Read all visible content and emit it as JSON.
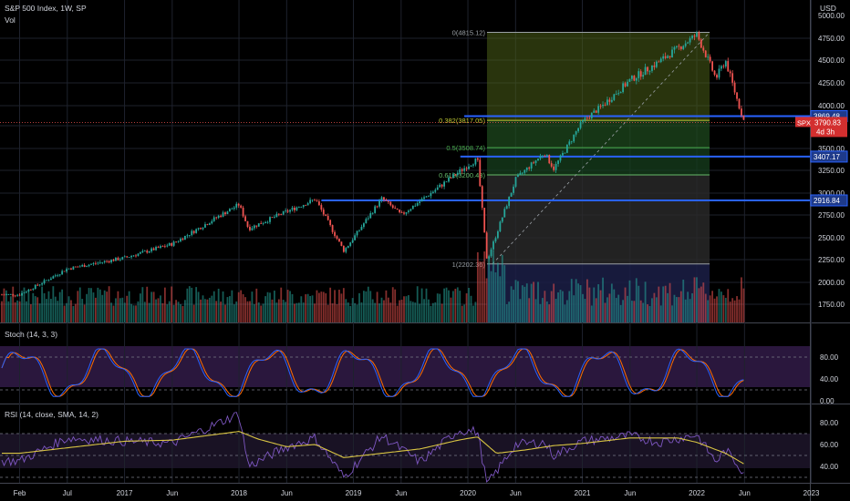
{
  "header": {
    "title": "S&P 500 Index, 1W, SP",
    "vol_label": "Vol",
    "stoch_label": "Stoch (14, 3, 3)",
    "rsi_label": "RSI (14, close, SMA, 14, 2)",
    "currency": "USD"
  },
  "price_badge": {
    "symbol": "SPX",
    "value": "3790.83",
    "countdown": "4d 3h"
  },
  "chart_data": [
    {
      "type": "candlestick",
      "title": "S&P 500 Index, 1W, SP",
      "y_ticks": [
        "5000.00",
        "4750.00",
        "4500.00",
        "4250.00",
        "4000.00",
        "3750.00",
        "3500.00",
        "3250.00",
        "3000.00",
        "2750.00",
        "2500.00",
        "2250.00",
        "2000.00",
        "1750.00"
      ],
      "ylim": [
        1500,
        5100
      ],
      "x_ticks": [
        "Feb",
        "Jul",
        "2017",
        "Jun",
        "2018",
        "Jun",
        "2019",
        "Jun",
        "2020",
        "Jun",
        "2021",
        "Jun",
        "2022",
        "Jun",
        "2023"
      ],
      "key_points": [
        {
          "date": "2016-02",
          "close": 1860
        },
        {
          "date": "2016-07",
          "close": 2150
        },
        {
          "date": "2017-01",
          "close": 2270
        },
        {
          "date": "2017-06",
          "close": 2430
        },
        {
          "date": "2018-01",
          "close": 2870
        },
        {
          "date": "2018-02",
          "close": 2600
        },
        {
          "date": "2018-09",
          "close": 2930
        },
        {
          "date": "2018-12",
          "close": 2350
        },
        {
          "date": "2019-04",
          "close": 2940
        },
        {
          "date": "2019-06",
          "close": 2750
        },
        {
          "date": "2019-12",
          "close": 3230
        },
        {
          "date": "2020-02",
          "close": 3380
        },
        {
          "date": "2020-03",
          "close": 2240
        },
        {
          "date": "2020-06",
          "close": 3150
        },
        {
          "date": "2020-09",
          "close": 3450
        },
        {
          "date": "2020-10",
          "close": 3270
        },
        {
          "date": "2021-01",
          "close": 3800
        },
        {
          "date": "2021-06",
          "close": 4280
        },
        {
          "date": "2021-09",
          "close": 4480
        },
        {
          "date": "2022-01",
          "close": 4790
        },
        {
          "date": "2022-03",
          "close": 4300
        },
        {
          "date": "2022-04",
          "close": 4500
        },
        {
          "date": "2022-06",
          "close": 3790
        }
      ],
      "horizontal_levels": [
        {
          "price": 3869.48,
          "label": "3869.48"
        },
        {
          "price": 3407.17,
          "label": "3407.17"
        },
        {
          "price": 2916.84,
          "label": "2916.84"
        }
      ],
      "fibonacci": [
        {
          "ratio": "0",
          "price": 4815.12,
          "label": "0(4815.12)"
        },
        {
          "ratio": "0.382",
          "price": 3817.05,
          "label": "0.382(3817.05)"
        },
        {
          "ratio": "0.5",
          "price": 3508.74,
          "label": "0.5(3508.74)"
        },
        {
          "ratio": "0.618",
          "price": 3200.43,
          "label": "0.618(3200.43)"
        },
        {
          "ratio": "1",
          "price": 2202.36,
          "label": "1(2202.36)"
        }
      ],
      "last_price": 3790.83
    },
    {
      "type": "line",
      "title": "Stoch (14, 3, 3)",
      "y_ticks": [
        "80.00",
        "40.00",
        "0.00"
      ],
      "ylim": [
        0,
        100
      ],
      "bands": [
        20,
        80
      ]
    },
    {
      "type": "line",
      "title": "RSI (14, close, SMA, 14, 2)",
      "y_ticks": [
        "80.00",
        "60.00",
        "40.00"
      ],
      "ylim": [
        25,
        95
      ],
      "bands": [
        30,
        50,
        70
      ],
      "rsi_points": [
        [
          "2016-02",
          45
        ],
        [
          "2016-07",
          66
        ],
        [
          "2017-01",
          63
        ],
        [
          "2017-06",
          61
        ],
        [
          "2018-01",
          88
        ],
        [
          "2018-02",
          40
        ],
        [
          "2018-06",
          58
        ],
        [
          "2018-09",
          66
        ],
        [
          "2018-12",
          30
        ],
        [
          "2019-04",
          68
        ],
        [
          "2019-08",
          44
        ],
        [
          "2019-12",
          73
        ],
        [
          "2020-02",
          72
        ],
        [
          "2020-03",
          23
        ],
        [
          "2020-06",
          60
        ],
        [
          "2020-09",
          62
        ],
        [
          "2020-10",
          50
        ],
        [
          "2021-01",
          63
        ],
        [
          "2021-06",
          68
        ],
        [
          "2021-09",
          62
        ],
        [
          "2022-01",
          69
        ],
        [
          "2022-03",
          44
        ],
        [
          "2022-04",
          55
        ],
        [
          "2022-06",
          34
        ]
      ],
      "sma_points": [
        [
          "2016-02",
          52
        ],
        [
          "2016-07",
          57
        ],
        [
          "2017-01",
          63
        ],
        [
          "2017-06",
          64
        ],
        [
          "2018-01",
          72
        ],
        [
          "2018-03",
          65
        ],
        [
          "2018-06",
          58
        ],
        [
          "2018-09",
          60
        ],
        [
          "2018-12",
          48
        ],
        [
          "2019-04",
          52
        ],
        [
          "2019-08",
          56
        ],
        [
          "2019-12",
          64
        ],
        [
          "2020-02",
          67
        ],
        [
          "2020-04",
          52
        ],
        [
          "2020-07",
          55
        ],
        [
          "2020-10",
          59
        ],
        [
          "2021-01",
          61
        ],
        [
          "2021-06",
          66
        ],
        [
          "2021-11",
          66
        ],
        [
          "2022-01",
          62
        ],
        [
          "2022-04",
          52
        ],
        [
          "2022-06",
          42
        ]
      ]
    }
  ],
  "colors": {
    "up": "#26a69a",
    "down": "#ef5350",
    "level": "#2962ff",
    "stoch_k": "#2962ff",
    "stoch_d": "#ff6d00",
    "rsi": "#7e57c2",
    "rsi_sma": "#d8c443",
    "badge": "#e53935"
  }
}
